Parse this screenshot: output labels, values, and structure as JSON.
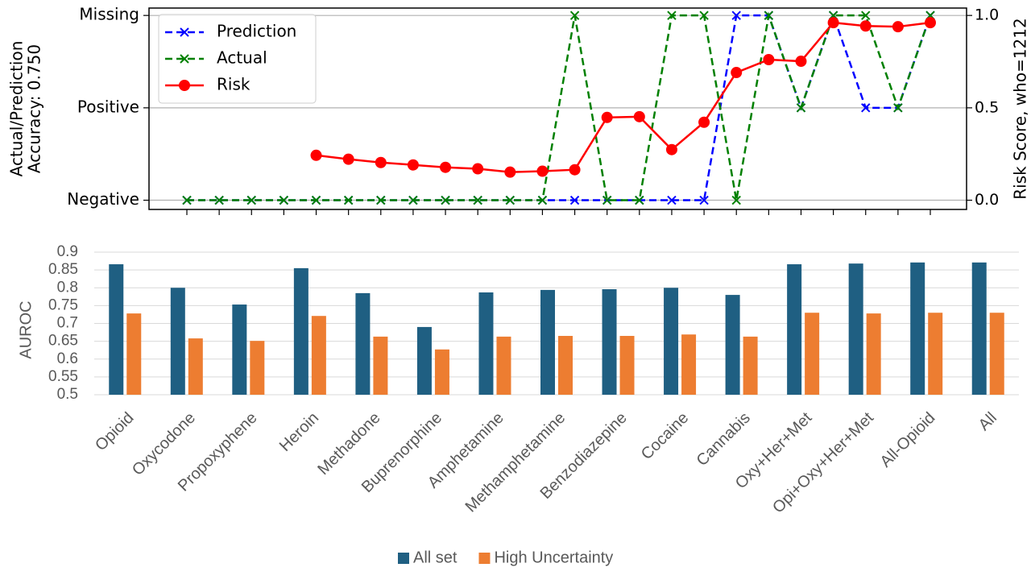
{
  "chart_data": [
    {
      "type": "line",
      "ylabel": [
        "Actual/Prediction",
        "Accuracy: 0.750"
      ],
      "y2label": "Risk Score, who=1212",
      "categories": [
        null,
        null,
        null,
        null,
        null,
        null,
        null,
        null,
        null,
        null,
        null,
        null,
        null,
        null,
        null,
        null,
        null,
        null,
        null,
        null,
        null,
        null,
        null,
        null
      ],
      "ylim": [
        -0.05,
        1.04
      ],
      "yticks": [
        {
          "value": 0,
          "label": "Negative"
        },
        {
          "value": 0.5,
          "label": "Positive"
        },
        {
          "value": 1,
          "label": "Missing"
        }
      ],
      "y2lim": [
        -0.05,
        1.04
      ],
      "y2ticks": [
        {
          "value": 0,
          "label": "0.0"
        },
        0.5,
        {
          "value": 1,
          "label": "1.0"
        }
      ],
      "grid": true,
      "legend": "upper left",
      "series": [
        {
          "name": "Prediction",
          "color": "#0000ff",
          "linestyle": "dashed",
          "marker": "x",
          "values": [
            0,
            0,
            0,
            0,
            0,
            0,
            0,
            0,
            0,
            0,
            0,
            0,
            0,
            0,
            0,
            0,
            0,
            1,
            1,
            0.5,
            1,
            0.5,
            0.5,
            1
          ]
        },
        {
          "name": "Actual",
          "color": "#008000",
          "linestyle": "dashed",
          "marker": "x",
          "values": [
            0,
            0,
            0,
            0,
            0,
            0,
            0,
            0,
            0,
            0,
            0,
            0,
            1,
            0,
            0,
            1,
            1,
            0,
            1,
            0.5,
            1,
            1,
            0.5,
            1
          ]
        },
        {
          "name": "Risk",
          "color": "#ff0000",
          "linestyle": "solid",
          "marker": "o",
          "axis": "y2",
          "values": [
            null,
            null,
            null,
            null,
            0.243,
            0.222,
            0.204,
            0.191,
            0.178,
            0.17,
            0.152,
            0.157,
            0.165,
            0.448,
            0.452,
            0.274,
            0.422,
            0.691,
            0.761,
            0.752,
            0.961,
            0.943,
            0.939,
            0.961
          ]
        }
      ]
    },
    {
      "type": "bar",
      "ylabel": "AUROC",
      "categories": [
        "Opioid",
        "Oxycodone",
        "Propoxyphene",
        "Heroin",
        "Methadone",
        "Buprenorphine",
        "Amphetamine",
        "Methamphetamine",
        "Benzodiazepine",
        "Cocaine",
        "Cannabis",
        "Oxy+Her+Met",
        "Opi+Oxy+Her+Met",
        "All-Opioid",
        "All"
      ],
      "ylim": [
        0.5,
        0.9
      ],
      "yticks": [
        0.5,
        0.55,
        0.6,
        0.65,
        0.7,
        0.75,
        0.8,
        0.85,
        0.9
      ],
      "grid": true,
      "legend": "bottom",
      "series": [
        {
          "name": "All set",
          "color": "#1f5f82",
          "values": [
            0.866,
            0.8,
            0.753,
            0.855,
            0.785,
            0.69,
            0.787,
            0.794,
            0.796,
            0.8,
            0.78,
            0.866,
            0.868,
            0.871,
            0.871
          ]
        },
        {
          "name": "High Uncertainty",
          "color": "#ed7d31",
          "values": [
            0.728,
            0.658,
            0.651,
            0.721,
            0.663,
            0.627,
            0.663,
            0.665,
            0.665,
            0.669,
            0.663,
            0.73,
            0.728,
            0.73,
            0.73
          ]
        }
      ]
    }
  ]
}
